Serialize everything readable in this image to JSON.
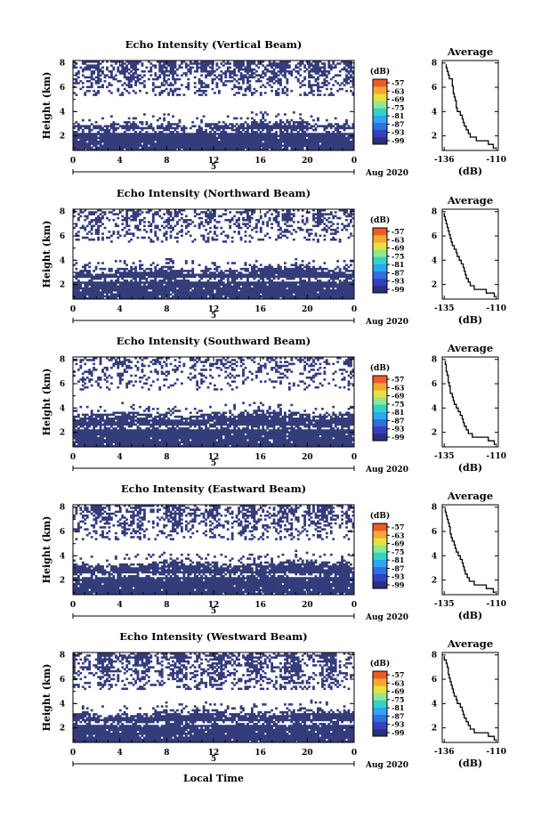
{
  "chart_data": {
    "type": "heatmap",
    "x_axis_label": "Local Time",
    "x_ticks": [
      "0",
      "4",
      "8",
      "12",
      "16",
      "20",
      "0"
    ],
    "date_label": "5",
    "date_suffix": "Aug 2020",
    "y_label": "Height (km)",
    "y_ticks": [
      "2",
      "4",
      "6",
      "8"
    ],
    "xlim": [
      0,
      24
    ],
    "ylim": [
      0.8,
      8.2
    ],
    "colorbar": {
      "unit": "(dB)",
      "ticks": [
        "-57",
        "-63",
        "-69",
        "-75",
        "-81",
        "-87",
        "-93",
        "-99"
      ],
      "range": [
        -99,
        -57
      ],
      "colormap": [
        "#2b2f7c",
        "#3440c0",
        "#2f6fe0",
        "#2aa8f0",
        "#35d2c8",
        "#8ee890",
        "#e8e040",
        "#f6a830",
        "#ee5a28"
      ]
    },
    "fill_color": "#343c7a",
    "panels": [
      {
        "title": "Echo Intensity (Vertical Beam)",
        "clouds": {
          "base": 5.3,
          "top": 8.2,
          "density": 0.5
        },
        "low_layer_top": 3.0,
        "seed": 11
      },
      {
        "title": "Echo Intensity (Northward Beam)",
        "clouds": {
          "base": 5.4,
          "top": 8.2,
          "density": 0.36
        },
        "low_layer_top": 3.3,
        "seed": 23
      },
      {
        "title": "Echo Intensity (Southward Beam)",
        "clouds": {
          "base": 5.5,
          "top": 8.2,
          "density": 0.3
        },
        "low_layer_top": 3.5,
        "seed": 37
      },
      {
        "title": "Echo Intensity (Eastward Beam)",
        "clouds": {
          "base": 5.3,
          "top": 8.2,
          "density": 0.44
        },
        "low_layer_top": 3.4,
        "seed": 41
      },
      {
        "title": "Echo Intensity (Westward Beam)",
        "clouds": {
          "base": 5.1,
          "top": 8.2,
          "density": 0.48
        },
        "low_layer_top": 3.3,
        "seed": 53
      }
    ],
    "average_profile": {
      "title": "Average",
      "xlabel": "(dB)",
      "ylim": [
        0.8,
        8.2
      ],
      "panels": [
        {
          "x_ticks": [
            "-136",
            "-110"
          ],
          "xlim": [
            -137,
            -109
          ],
          "heights": [
            1.0,
            1.3,
            1.6,
            1.9,
            2.2,
            2.5,
            2.8,
            3.1,
            3.4,
            3.7,
            4.0,
            4.3,
            4.6,
            4.9,
            5.2,
            5.5,
            5.8,
            6.1,
            6.4,
            6.7,
            7.0,
            7.3,
            7.6,
            7.9
          ],
          "values": [
            -110.5,
            -111.5,
            -114,
            -120,
            -123,
            -124,
            -125,
            -126,
            -126.5,
            -127,
            -128,
            -129.5,
            -130,
            -130,
            -130.5,
            -131,
            -131.5,
            -131.5,
            -132,
            -132,
            -133.5,
            -134,
            -134.5,
            -135
          ]
        },
        {
          "x_ticks": [
            "-135",
            "-110"
          ],
          "xlim": [
            -137,
            -109
          ],
          "heights": [
            1.0,
            1.3,
            1.6,
            1.9,
            2.2,
            2.5,
            2.8,
            3.1,
            3.4,
            3.7,
            4.0,
            4.3,
            4.6,
            4.9,
            5.2,
            5.5,
            5.8,
            6.1,
            6.4,
            6.7,
            7.0,
            7.3,
            7.6,
            7.9
          ],
          "values": [
            -110.5,
            -111,
            -115,
            -121,
            -123,
            -124,
            -125,
            -125.5,
            -126,
            -126.5,
            -127.5,
            -128.5,
            -129.5,
            -130,
            -131,
            -132,
            -132.5,
            -133,
            -133.5,
            -134,
            -134.5,
            -135,
            -135.5,
            -136
          ]
        },
        {
          "x_ticks": [
            "-135",
            "-110"
          ],
          "xlim": [
            -137,
            -109
          ],
          "heights": [
            1.0,
            1.3,
            1.6,
            1.9,
            2.2,
            2.5,
            2.8,
            3.1,
            3.4,
            3.7,
            4.0,
            4.3,
            4.6,
            4.9,
            5.2,
            5.5,
            5.8,
            6.1,
            6.4,
            6.7,
            7.0,
            7.3,
            7.6,
            7.9
          ],
          "values": [
            -110.5,
            -111,
            -114,
            -122,
            -124,
            -125,
            -126,
            -126.5,
            -127,
            -128,
            -129,
            -130,
            -131,
            -131.5,
            -132,
            -133,
            -133,
            -133.5,
            -134,
            -134,
            -134.5,
            -135,
            -135,
            -135.5
          ]
        },
        {
          "x_ticks": [
            "-135",
            "-110"
          ],
          "xlim": [
            -137,
            -109
          ],
          "heights": [
            1.0,
            1.3,
            1.6,
            1.9,
            2.2,
            2.5,
            2.8,
            3.1,
            3.4,
            3.7,
            4.0,
            4.3,
            4.6,
            4.9,
            5.2,
            5.5,
            5.8,
            6.1,
            6.4,
            6.7,
            7.0,
            7.3,
            7.6,
            7.9
          ],
          "values": [
            -110.5,
            -111.5,
            -115,
            -121,
            -123.5,
            -124.5,
            -125.5,
            -126,
            -126.5,
            -127,
            -128,
            -129,
            -130,
            -130.5,
            -131,
            -132,
            -132.5,
            -133,
            -133,
            -133.5,
            -134,
            -134.5,
            -135,
            -135.5
          ]
        },
        {
          "x_ticks": [
            "-136",
            "-110"
          ],
          "xlim": [
            -137,
            -109
          ],
          "heights": [
            1.0,
            1.3,
            1.6,
            1.9,
            2.2,
            2.5,
            2.8,
            3.1,
            3.4,
            3.7,
            4.0,
            4.3,
            4.6,
            4.9,
            5.2,
            5.5,
            5.8,
            6.1,
            6.4,
            6.7,
            7.0,
            7.3,
            7.6,
            7.9
          ],
          "values": [
            -110.5,
            -111,
            -114,
            -121,
            -123,
            -124,
            -125,
            -126,
            -126.5,
            -127,
            -128,
            -129.5,
            -130,
            -131,
            -131.5,
            -132,
            -132.5,
            -133,
            -133.5,
            -134,
            -134,
            -134.5,
            -135,
            -136
          ]
        }
      ]
    }
  }
}
